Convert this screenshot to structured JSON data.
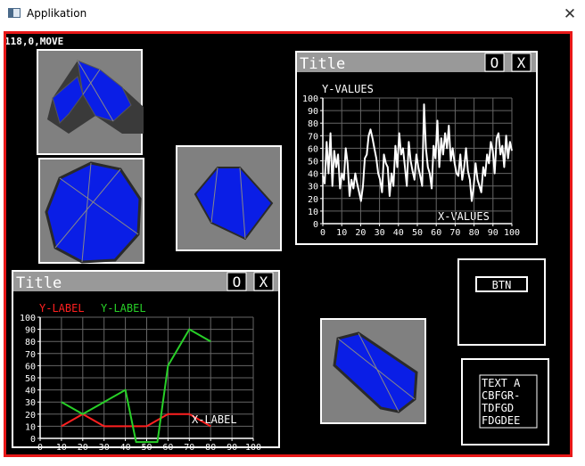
{
  "window": {
    "title": "Applikation",
    "close_glyph": "✕",
    "icon": "app-window-icon"
  },
  "status_text": "118,0,MOVE",
  "colors": {
    "frame": "#e81818",
    "screen_bg": "#000000",
    "panel_bg": "#7f7f7f",
    "shape_fill": "#0a1ee6",
    "panel_title_bg": "#999999",
    "series_red": "#ff2020",
    "series_green": "#28d028"
  },
  "chart_window_1": {
    "title": "Title",
    "btn_o": "O",
    "btn_x": "X",
    "ylabel": "Y-VALUES",
    "xlabel": "X-VALUES"
  },
  "chart_window_2": {
    "title": "Title",
    "btn_o": "O",
    "btn_x": "X",
    "legend_red": "Y-LABEL",
    "legend_green": "Y-LABEL",
    "xlabel": "X-LABEL"
  },
  "button_widget": {
    "label": "BTN"
  },
  "text_widget": {
    "lines": [
      "TEXT A",
      "CBFGR-",
      "TDFGD",
      "FDGDEE"
    ]
  },
  "chart_data": [
    {
      "type": "line",
      "title": "",
      "xlabel": "X-VALUES",
      "ylabel": "Y-VALUES",
      "xlim": [
        0,
        100
      ],
      "ylim": [
        0,
        100
      ],
      "xticks": [
        "0",
        "10",
        "20",
        "30",
        "40",
        "50",
        "60",
        "70",
        "80",
        "90",
        "100"
      ],
      "yticks": [
        "0",
        "10",
        "20",
        "30",
        "40",
        "50",
        "60",
        "70",
        "80",
        "90",
        "100"
      ],
      "grid": true,
      "series": [
        {
          "values": [
            38,
            32,
            65,
            40,
            72,
            30,
            58,
            45,
            55,
            28,
            40,
            35,
            60,
            48,
            22,
            35,
            28,
            40,
            32,
            25,
            18,
            30,
            52,
            55,
            70,
            75,
            68,
            60,
            52,
            40,
            35,
            25,
            55,
            48,
            45,
            22,
            40,
            30,
            62,
            45,
            72,
            55,
            60,
            45,
            30,
            65,
            50,
            42,
            35,
            55,
            45,
            38,
            30,
            95,
            60,
            45,
            40,
            28,
            62,
            52,
            82,
            45,
            68,
            55,
            72,
            60,
            78,
            50,
            60,
            48,
            40,
            38,
            55,
            35,
            45,
            60,
            42,
            35,
            18,
            30,
            48,
            35,
            30,
            25,
            45,
            38,
            55,
            48,
            65,
            58,
            40,
            68,
            72,
            55,
            62,
            45,
            70,
            52,
            65,
            58
          ]
        }
      ]
    },
    {
      "type": "line",
      "title": "",
      "xlabel": "X-LABEL",
      "ylabel": "",
      "xlim": [
        0,
        100
      ],
      "ylim": [
        0,
        100
      ],
      "xticks": [
        "0",
        "10",
        "20",
        "30",
        "40",
        "50",
        "60",
        "70",
        "80",
        "90",
        "100"
      ],
      "yticks": [
        "0",
        "10",
        "20",
        "30",
        "40",
        "50",
        "60",
        "70",
        "80",
        "90",
        "100"
      ],
      "grid": true,
      "series": [
        {
          "name": "Y-LABEL",
          "color": "#ff2020",
          "x": [
            10,
            20,
            30,
            40,
            50,
            60,
            70,
            80
          ],
          "y": [
            10,
            20,
            10,
            10,
            10,
            20,
            20,
            10
          ]
        },
        {
          "name": "Y-LABEL",
          "color": "#28d028",
          "x": [
            10,
            20,
            30,
            40,
            45,
            52,
            55,
            60,
            70,
            80
          ],
          "y": [
            30,
            20,
            30,
            40,
            -3,
            -3,
            -3,
            60,
            90,
            80
          ]
        }
      ]
    }
  ]
}
